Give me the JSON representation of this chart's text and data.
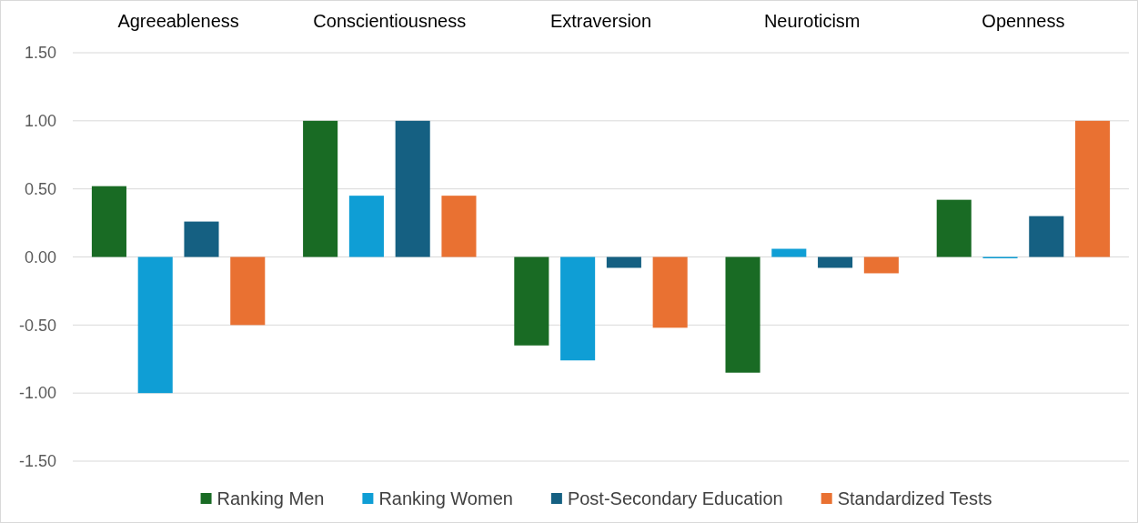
{
  "chart_data": {
    "type": "bar",
    "categories": [
      "Agreeableness",
      "Conscientiousness",
      "Extraversion",
      "Neuroticism",
      "Openness"
    ],
    "series": [
      {
        "name": "Ranking Men",
        "color": "#196b24",
        "values": [
          0.52,
          1.0,
          -0.65,
          -0.85,
          0.42
        ]
      },
      {
        "name": "Ranking Women",
        "color": "#0f9ed5",
        "values": [
          -1.0,
          0.45,
          -0.76,
          0.06,
          -0.01
        ]
      },
      {
        "name": "Post-Secondary Education",
        "color": "#156082",
        "values": [
          0.26,
          1.0,
          -0.08,
          -0.08,
          0.3
        ]
      },
      {
        "name": "Standardized Tests",
        "color": "#e97132",
        "values": [
          -0.5,
          0.45,
          -0.52,
          -0.12,
          1.0
        ]
      }
    ],
    "ylim": [
      -1.5,
      1.5
    ],
    "yticks": [
      {
        "value": -1.5,
        "label": "-1.50"
      },
      {
        "value": -1,
        "label": "-1.00"
      },
      {
        "value": -0.5,
        "label": "-0.50"
      },
      {
        "value": 0,
        "label": "0.00"
      },
      {
        "value": 0.5,
        "label": "0.50"
      },
      {
        "value": 1,
        "label": "1.00"
      },
      {
        "value": 1.5,
        "label": "1.50"
      }
    ],
    "grid": "y",
    "legend": "bottom"
  }
}
